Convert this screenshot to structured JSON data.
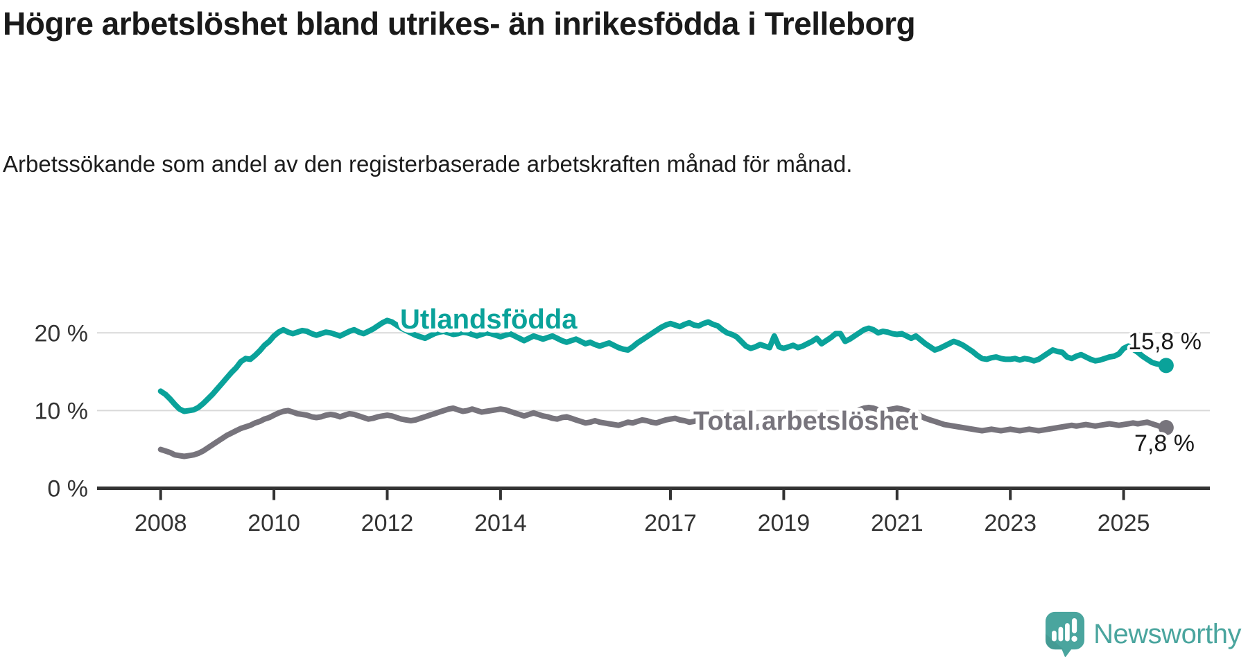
{
  "header": {
    "title": "Högre arbetslöshet bland utrikes- än inrikesfödda i Trelleborg",
    "subtitle": "Arbetssökande som andel av den registerbaserade arbetskraften månad för månad."
  },
  "footer": {
    "brand": "Newsworthy"
  },
  "colors": {
    "foreign_born_line": "#0aa29a",
    "total_line": "#77747c",
    "grid": "#d9d9d9",
    "axis": "#333333",
    "tick_label": "#333333",
    "value_label": "#1a1a1a",
    "brand_teal": "#4aa59e",
    "brand_teal_dark": "#3f948d",
    "background": "#ffffff"
  },
  "chart_data": {
    "type": "line",
    "title": "Högre arbetslöshet bland utrikes- än inrikesfödda i Trelleborg",
    "subtitle": "Arbetssökande som andel av den registerbaserade arbetskraften månad för månad.",
    "xlabel": "",
    "ylabel": "",
    "x_start_year": 2008,
    "x_start_month": 1,
    "x_frequency": "monthly",
    "x_tick_years": [
      2008,
      2010,
      2012,
      2014,
      2017,
      2019,
      2021,
      2023,
      2025
    ],
    "y_ticks": [
      {
        "value": 0,
        "label": "0 %"
      },
      {
        "value": 10,
        "label": "10 %"
      },
      {
        "value": 20,
        "label": "20 %"
      }
    ],
    "ylim": [
      0,
      25.4
    ],
    "grid": "horizontal",
    "legend_position": "inline-labels",
    "series": [
      {
        "name": "Utlandsfödda",
        "label_text": "Utlandsfödda",
        "end_label": "15,8 %",
        "end_value": 15.8,
        "color": "#0aa29a",
        "values": [
          12.5,
          12.1,
          11.5,
          10.8,
          10.2,
          9.9,
          10.0,
          10.1,
          10.4,
          10.9,
          11.5,
          12.1,
          12.8,
          13.5,
          14.2,
          14.9,
          15.5,
          16.3,
          16.7,
          16.6,
          17.1,
          17.7,
          18.4,
          18.9,
          19.6,
          20.1,
          20.4,
          20.1,
          19.9,
          20.1,
          20.3,
          20.2,
          19.9,
          19.7,
          19.9,
          20.1,
          20.0,
          19.8,
          19.6,
          19.9,
          20.2,
          20.4,
          20.1,
          19.9,
          20.2,
          20.5,
          20.9,
          21.3,
          21.6,
          21.4,
          21.0,
          20.6,
          20.3,
          20.0,
          19.7,
          19.5,
          19.3,
          19.6,
          19.9,
          20.1,
          20.2,
          20.0,
          19.8,
          19.9,
          20.1,
          20.0,
          19.8,
          19.6,
          19.8,
          20.0,
          19.9,
          19.7,
          19.5,
          19.7,
          19.9,
          19.6,
          19.3,
          19.0,
          19.3,
          19.6,
          19.4,
          19.2,
          19.4,
          19.6,
          19.3,
          19.0,
          18.8,
          19.0,
          19.2,
          18.9,
          18.6,
          18.8,
          18.5,
          18.3,
          18.5,
          18.7,
          18.4,
          18.1,
          17.9,
          17.8,
          18.2,
          18.7,
          19.1,
          19.5,
          19.9,
          20.3,
          20.7,
          21.0,
          21.2,
          21.0,
          20.8,
          21.1,
          21.3,
          21.0,
          20.9,
          21.2,
          21.4,
          21.1,
          20.9,
          20.4,
          20.0,
          19.8,
          19.5,
          18.9,
          18.3,
          18.0,
          18.2,
          18.5,
          18.3,
          18.1,
          19.6,
          18.2,
          18.0,
          18.2,
          18.4,
          18.1,
          18.3,
          18.6,
          18.9,
          19.3,
          18.6,
          19.0,
          19.4,
          19.9,
          19.9,
          18.9,
          19.2,
          19.6,
          20.0,
          20.4,
          20.6,
          20.4,
          20.0,
          20.2,
          20.1,
          19.9,
          19.8,
          19.9,
          19.6,
          19.3,
          19.6,
          19.1,
          18.6,
          18.2,
          17.8,
          18.0,
          18.3,
          18.6,
          18.9,
          18.7,
          18.4,
          18.0,
          17.6,
          17.1,
          16.7,
          16.6,
          16.8,
          16.9,
          16.7,
          16.6,
          16.6,
          16.7,
          16.5,
          16.7,
          16.6,
          16.4,
          16.6,
          17.0,
          17.4,
          17.8,
          17.6,
          17.5,
          16.9,
          16.7,
          17.0,
          17.2,
          16.9,
          16.6,
          16.4,
          16.5,
          16.7,
          16.9,
          17.0,
          17.3,
          18.0,
          18.3,
          17.9,
          17.5,
          17.0,
          16.6,
          16.2,
          16.0,
          15.9,
          15.8
        ]
      },
      {
        "name": "Total arbetslöshet",
        "label_text": "Total arbetslöshet",
        "end_label": "7,8 %",
        "end_value": 7.8,
        "color": "#77747c",
        "values": [
          5.0,
          4.8,
          4.6,
          4.3,
          4.2,
          4.1,
          4.2,
          4.3,
          4.5,
          4.8,
          5.2,
          5.6,
          6.0,
          6.4,
          6.8,
          7.1,
          7.4,
          7.7,
          7.9,
          8.1,
          8.4,
          8.6,
          8.9,
          9.1,
          9.4,
          9.7,
          9.9,
          10.0,
          9.8,
          9.6,
          9.5,
          9.4,
          9.2,
          9.1,
          9.2,
          9.4,
          9.5,
          9.4,
          9.2,
          9.4,
          9.6,
          9.5,
          9.3,
          9.1,
          8.9,
          9.0,
          9.2,
          9.3,
          9.4,
          9.3,
          9.1,
          8.9,
          8.8,
          8.7,
          8.8,
          9.0,
          9.2,
          9.4,
          9.6,
          9.8,
          10.0,
          10.2,
          10.3,
          10.1,
          9.9,
          10.0,
          10.2,
          10.0,
          9.8,
          9.9,
          10.0,
          10.1,
          10.2,
          10.1,
          9.9,
          9.7,
          9.5,
          9.3,
          9.5,
          9.7,
          9.5,
          9.3,
          9.2,
          9.0,
          8.9,
          9.1,
          9.2,
          9.0,
          8.8,
          8.6,
          8.4,
          8.5,
          8.7,
          8.5,
          8.4,
          8.3,
          8.2,
          8.1,
          8.3,
          8.5,
          8.4,
          8.6,
          8.8,
          8.7,
          8.5,
          8.4,
          8.6,
          8.8,
          8.9,
          9.0,
          8.8,
          8.7,
          8.5,
          8.6,
          8.8,
          8.9,
          8.7,
          8.5,
          8.4,
          8.3,
          8.2,
          8.1,
          8.0,
          7.9,
          7.8,
          7.7,
          7.8,
          8.0,
          7.9,
          7.8,
          7.9,
          8.0,
          8.1,
          8.2,
          8.1,
          8.0,
          8.1,
          8.3,
          8.5,
          8.7,
          8.6,
          8.8,
          8.9,
          9.0,
          9.1,
          9.2,
          9.5,
          9.8,
          10.1,
          10.3,
          10.4,
          10.3,
          10.1,
          10.0,
          10.1,
          10.2,
          10.3,
          10.2,
          10.0,
          9.8,
          9.6,
          9.3,
          9.0,
          8.8,
          8.6,
          8.4,
          8.2,
          8.1,
          8.0,
          7.9,
          7.8,
          7.7,
          7.6,
          7.5,
          7.4,
          7.5,
          7.6,
          7.5,
          7.4,
          7.5,
          7.6,
          7.5,
          7.4,
          7.5,
          7.6,
          7.5,
          7.4,
          7.5,
          7.6,
          7.7,
          7.8,
          7.9,
          8.0,
          8.1,
          8.0,
          8.1,
          8.2,
          8.1,
          8.0,
          8.1,
          8.2,
          8.3,
          8.2,
          8.1,
          8.2,
          8.3,
          8.4,
          8.3,
          8.4,
          8.5,
          8.3,
          8.1,
          7.9,
          7.8
        ]
      }
    ]
  }
}
